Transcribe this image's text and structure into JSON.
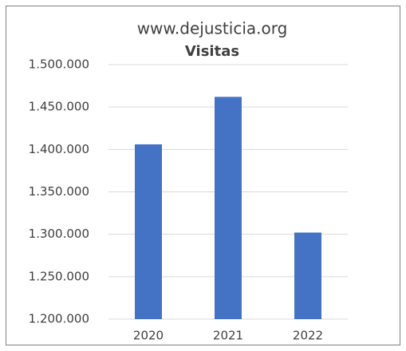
{
  "chart_data": {
    "type": "bar",
    "title": "www.dejusticia.org",
    "subtitle": "Visitas",
    "categories": [
      "2020",
      "2021",
      "2022"
    ],
    "values": [
      1406000,
      1462000,
      1302000
    ],
    "color": "#4472c4",
    "ylim": [
      1200000,
      1500000
    ],
    "yticks": [
      {
        "value": 1200000,
        "label": "1.200.000"
      },
      {
        "value": 1250000,
        "label": "1.250.000"
      },
      {
        "value": 1300000,
        "label": "1.300.000"
      },
      {
        "value": 1350000,
        "label": "1.350.000"
      },
      {
        "value": 1400000,
        "label": "1.400.000"
      },
      {
        "value": 1450000,
        "label": "1.450.000"
      },
      {
        "value": 1500000,
        "label": "1.500.000"
      }
    ],
    "grid": true
  }
}
